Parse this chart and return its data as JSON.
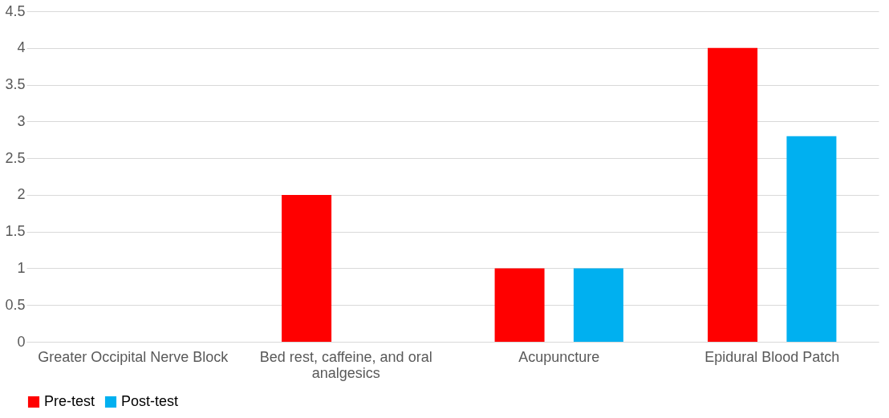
{
  "chart_data": {
    "type": "bar",
    "categories": [
      "Greater Occipital Nerve Block",
      "Bed rest, caffeine, and oral analgesics",
      "Acupuncture",
      "Epidural Blood Patch"
    ],
    "series": [
      {
        "name": "Pre-test",
        "color": "#ff0000",
        "values": [
          0,
          2,
          1,
          4
        ]
      },
      {
        "name": "Post-test",
        "color": "#00b0f0",
        "values": [
          0,
          0,
          1,
          2.8
        ]
      }
    ],
    "ylim": [
      0,
      4.5
    ],
    "yticks": [
      0,
      0.5,
      1,
      1.5,
      2,
      2.5,
      3,
      3.5,
      4,
      4.5
    ],
    "grid": "y",
    "legend": "bottom"
  }
}
